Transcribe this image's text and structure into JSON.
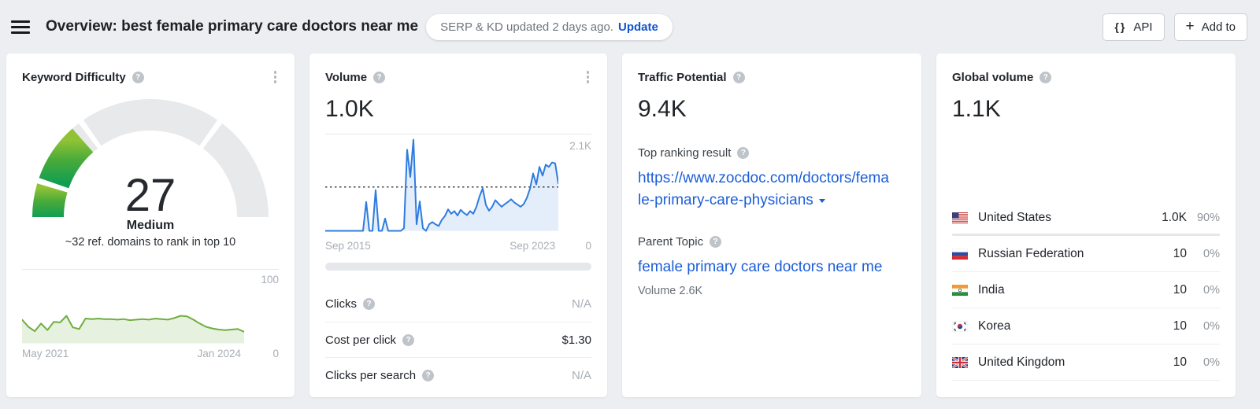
{
  "header": {
    "title": "Overview: best female primary care doctors near me",
    "status_pill": {
      "text": "SERP & KD updated 2 days ago.",
      "action": "Update"
    },
    "buttons": [
      {
        "id": "api",
        "icon": "braces-icon",
        "label": "API"
      },
      {
        "id": "add_to",
        "icon": "plus-icon",
        "label": "Add to"
      }
    ]
  },
  "keyword_difficulty": {
    "title": "Keyword Difficulty",
    "value": "27",
    "level": "Medium",
    "subtitle": "~32 ref. domains to rank in top 10",
    "history_axis": {
      "y_max": "100",
      "y_min": "0",
      "x_start": "May 2021",
      "x_end": "Jan 2024"
    }
  },
  "volume": {
    "title": "Volume",
    "value": "1.0K",
    "trend_axis": {
      "y_max": "2.1K",
      "y_min": "0",
      "x_start": "Sep 2015",
      "x_end": "Sep 2023"
    },
    "stats": [
      {
        "label": "Clicks",
        "value": "N/A"
      },
      {
        "label": "Cost per click",
        "value": "$1.30"
      },
      {
        "label": "Clicks per search",
        "value": "N/A"
      }
    ]
  },
  "traffic_potential": {
    "title": "Traffic Potential",
    "value": "9.4K",
    "top_ranking_label": "Top ranking result",
    "top_ranking_url": "https://www.zocdoc.com/doctors/female-primary-care-physicians",
    "parent_topic_label": "Parent Topic",
    "parent_topic": "female primary care doctors near me",
    "parent_topic_volume": "Volume 2.6K"
  },
  "global_volume": {
    "title": "Global volume",
    "value": "1.1K",
    "countries": [
      {
        "code": "us",
        "name": "United States",
        "volume": "1.0K",
        "share": "90%",
        "bar_pct": 90
      },
      {
        "code": "ru",
        "name": "Russian Federation",
        "volume": "10",
        "share": "0%"
      },
      {
        "code": "in",
        "name": "India",
        "volume": "10",
        "share": "0%"
      },
      {
        "code": "kr",
        "name": "Korea",
        "volume": "10",
        "share": "0%"
      },
      {
        "code": "gb",
        "name": "United Kingdom",
        "volume": "10",
        "share": "0%"
      }
    ]
  },
  "chart_data": [
    {
      "id": "kd-gauge",
      "type": "gauge",
      "title": "Keyword Difficulty",
      "value": 27,
      "min": 0,
      "max": 100,
      "label": "Medium",
      "segments": [
        [
          0,
          10
        ],
        [
          10,
          30
        ],
        [
          30,
          70
        ],
        [
          70,
          100
        ]
      ],
      "track_color": "#e8e9eb",
      "fill_gradient": [
        "#119e51",
        "#4aab3a",
        "#90c236"
      ]
    },
    {
      "id": "kd-history",
      "type": "area",
      "title": "Keyword Difficulty history",
      "x_start_label": "May 2021",
      "x_end_label": "Jan 2024",
      "ylim": [
        0,
        100
      ],
      "line_color": "#6fae3f",
      "fill_color": "rgba(118,180,82,0.18)",
      "values": [
        43,
        30,
        22,
        36,
        24,
        39,
        38,
        50,
        29,
        26,
        45,
        44,
        45,
        44,
        44,
        43,
        44,
        42,
        43,
        44,
        43,
        45,
        44,
        43,
        46,
        50,
        49,
        43,
        36,
        30,
        27,
        25,
        24,
        25,
        26,
        21
      ]
    },
    {
      "id": "volume-trend",
      "type": "area",
      "title": "Search volume trend",
      "x_start_label": "Sep 2015",
      "x_end_label": "Sep 2023",
      "ylim": [
        0,
        2100
      ],
      "reference_line": 1000,
      "reference_color": "#3f4347",
      "line_color": "#2e7ce0",
      "fill_color": "rgba(46,124,224,0.13)",
      "values": [
        0,
        0,
        0,
        0,
        0,
        0,
        0,
        0,
        0,
        0,
        0,
        0,
        0,
        660,
        0,
        0,
        930,
        0,
        0,
        280,
        0,
        0,
        0,
        0,
        0,
        60,
        1850,
        1230,
        2080,
        150,
        670,
        60,
        0,
        150,
        200,
        150,
        110,
        250,
        340,
        490,
        390,
        450,
        350,
        480,
        410,
        360,
        450,
        390,
        550,
        790,
        970,
        590,
        460,
        550,
        700,
        620,
        550,
        610,
        660,
        720,
        650,
        600,
        550,
        610,
        750,
        960,
        1310,
        1060,
        1460,
        1260,
        1510,
        1460,
        1560,
        1540,
        1080
      ]
    }
  ]
}
